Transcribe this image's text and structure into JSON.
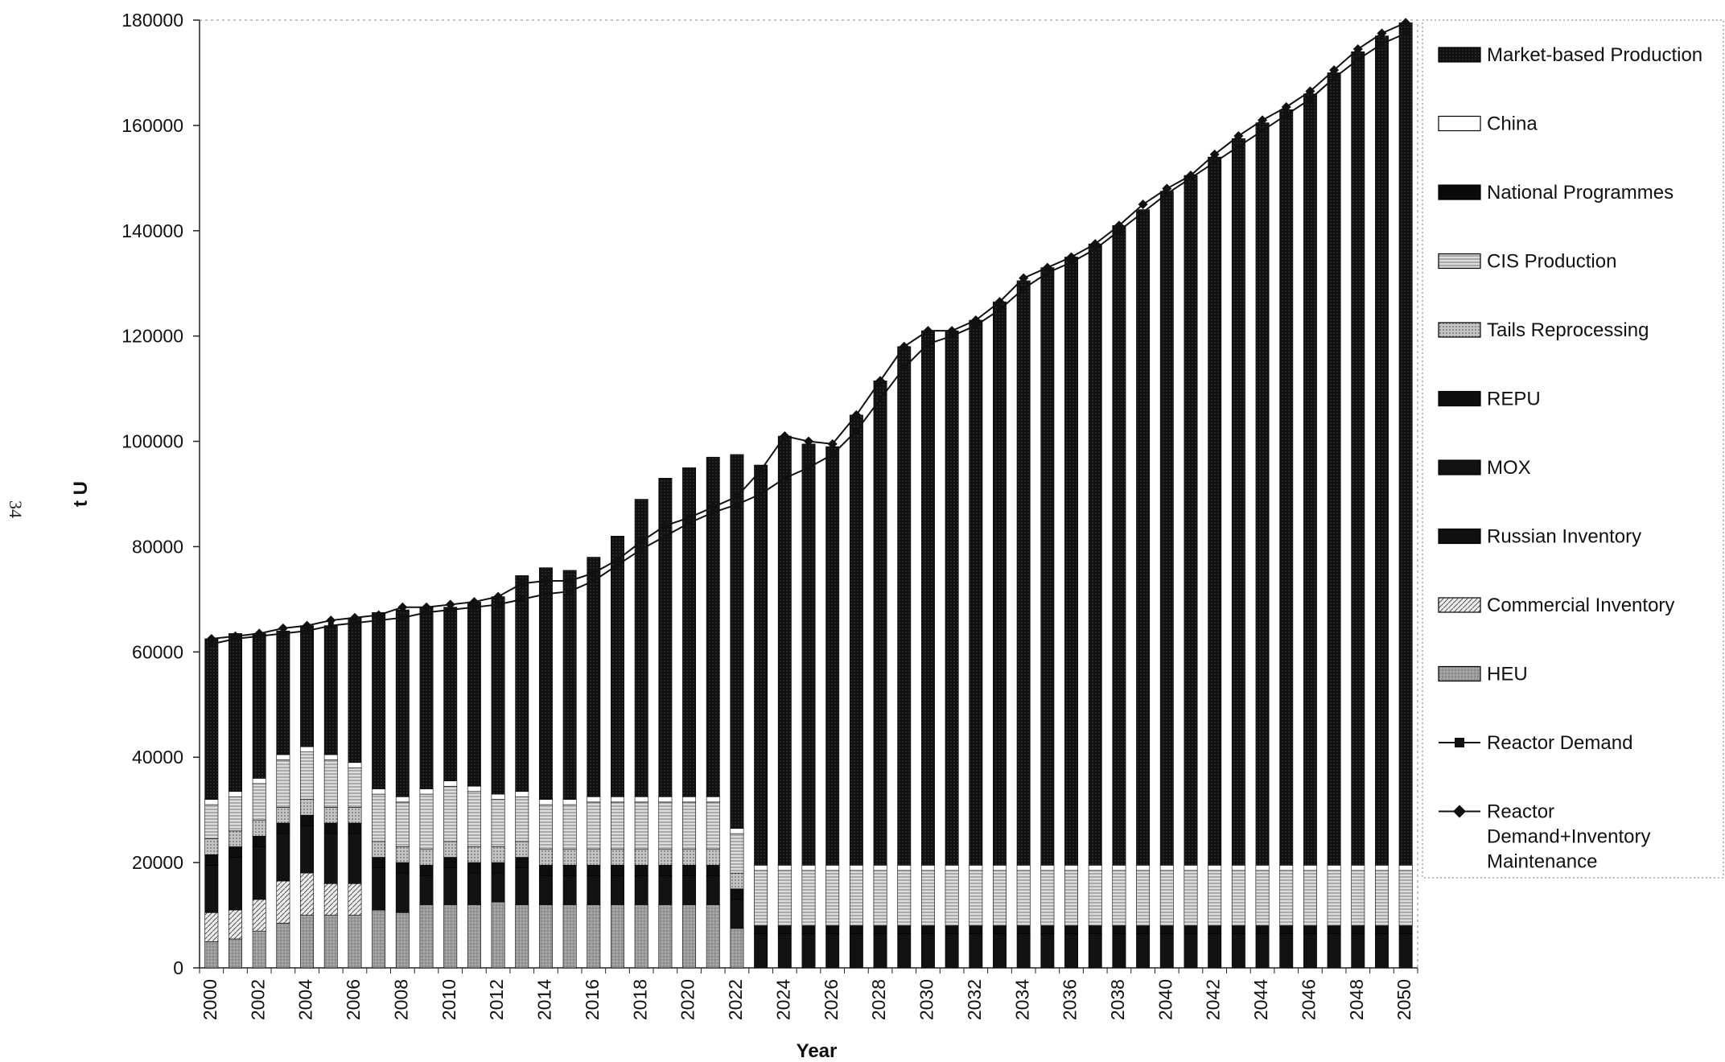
{
  "page_number": "34",
  "colors": {
    "market": "#161616",
    "china": "#ffffff",
    "national": "#0a0a0a",
    "cis": "#d9d9d9",
    "tails": "#bdbdbd",
    "repu": "#0d0d0d",
    "mox": "#121212",
    "russian": "#101010",
    "commercial": "#e8e8e8",
    "heu": "#9a9a9a",
    "line": "#111111"
  },
  "chart_data": {
    "type": "bar",
    "stacked": true,
    "title": "",
    "xlabel": "Year",
    "ylabel": "t U",
    "ylim": [
      0,
      180000
    ],
    "yticks": [
      0,
      20000,
      40000,
      60000,
      80000,
      100000,
      120000,
      140000,
      160000,
      180000
    ],
    "xtick_labels": [
      "2000",
      "2002",
      "2004",
      "2006",
      "2008",
      "2010",
      "2012",
      "2014",
      "2016",
      "2018",
      "2020",
      "2022",
      "2024",
      "2026",
      "2028",
      "2030",
      "2032",
      "2034",
      "2036",
      "2038",
      "2040",
      "2042",
      "2044",
      "2046",
      "2048",
      "2050"
    ],
    "grid": false,
    "legend_position": "right",
    "categories": [
      "2000",
      "2001",
      "2002",
      "2003",
      "2004",
      "2005",
      "2006",
      "2007",
      "2008",
      "2009",
      "2010",
      "2011",
      "2012",
      "2013",
      "2014",
      "2015",
      "2016",
      "2017",
      "2018",
      "2019",
      "2020",
      "2021",
      "2022",
      "2023",
      "2024",
      "2025",
      "2026",
      "2027",
      "2028",
      "2029",
      "2030",
      "2031",
      "2032",
      "2033",
      "2034",
      "2035",
      "2036",
      "2037",
      "2038",
      "2039",
      "2040",
      "2041",
      "2042",
      "2043",
      "2044",
      "2045",
      "2046",
      "2047",
      "2048",
      "2049",
      "2050"
    ],
    "legend": [
      {
        "label": "Market-based Production",
        "key": "market",
        "kind": "bar"
      },
      {
        "label": "China",
        "key": "china",
        "kind": "bar"
      },
      {
        "label": "National Programmes",
        "key": "national",
        "kind": "bar"
      },
      {
        "label": "CIS Production",
        "key": "cis",
        "kind": "bar"
      },
      {
        "label": "Tails Reprocessing",
        "key": "tails",
        "kind": "bar"
      },
      {
        "label": "REPU",
        "key": "repu",
        "kind": "bar"
      },
      {
        "label": "MOX",
        "key": "mox",
        "kind": "bar"
      },
      {
        "label": "Russian Inventory",
        "key": "russian",
        "kind": "bar"
      },
      {
        "label": "Commercial Inventory",
        "key": "commercial",
        "kind": "bar"
      },
      {
        "label": "HEU",
        "key": "heu",
        "kind": "bar"
      },
      {
        "label": "Reactor Demand",
        "key": "demand",
        "kind": "line-square"
      },
      {
        "label": "Reactor Demand+Inventory Maintenance",
        "label_lines": [
          "Reactor",
          "Demand+Inventory",
          "Maintenance"
        ],
        "key": "demand_inv",
        "kind": "line-diamond"
      }
    ],
    "series": [
      {
        "key": "heu",
        "values": [
          5000,
          5500,
          7000,
          8500,
          10000,
          10000,
          10000,
          11000,
          10500,
          12000,
          12000,
          12000,
          12500,
          12000,
          12000,
          12000,
          12000,
          12000,
          12000,
          12000,
          12000,
          12000,
          7500,
          0,
          0,
          0,
          0,
          0,
          0,
          0,
          0,
          0,
          0,
          0,
          0,
          0,
          0,
          0,
          0,
          0,
          0,
          0,
          0,
          0,
          0,
          0,
          0,
          0,
          0,
          0,
          0
        ]
      },
      {
        "key": "commercial",
        "values": [
          5500,
          5500,
          6000,
          8000,
          8000,
          6000,
          6000,
          0,
          0,
          0,
          0,
          0,
          0,
          0,
          0,
          0,
          0,
          0,
          0,
          0,
          0,
          0,
          0,
          0,
          0,
          0,
          0,
          0,
          0,
          0,
          0,
          0,
          0,
          0,
          0,
          0,
          0,
          0,
          0,
          0,
          0,
          0,
          0,
          0,
          0,
          0,
          0,
          0,
          0,
          0,
          0
        ]
      },
      {
        "key": "russian",
        "values": [
          0,
          0,
          0,
          0,
          0,
          0,
          0,
          0,
          0,
          0,
          0,
          0,
          0,
          0,
          0,
          0,
          0,
          0,
          0,
          0,
          0,
          0,
          0,
          0,
          0,
          0,
          0,
          0,
          0,
          0,
          0,
          0,
          0,
          0,
          0,
          0,
          0,
          0,
          0,
          0,
          0,
          0,
          0,
          0,
          0,
          0,
          0,
          0,
          0,
          0,
          0
        ]
      },
      {
        "key": "mox",
        "values": [
          9000,
          10000,
          10000,
          9000,
          9000,
          9500,
          9500,
          8000,
          7500,
          5500,
          7000,
          6000,
          5500,
          7000,
          5500,
          5500,
          5500,
          5500,
          5500,
          5500,
          5500,
          5500,
          5500,
          6500,
          6500,
          6500,
          6500,
          6500,
          6500,
          6500,
          6500,
          6500,
          6500,
          6500,
          6500,
          6500,
          6500,
          6500,
          6500,
          6500,
          6500,
          6500,
          6500,
          6500,
          6500,
          6500,
          6500,
          6500,
          6500,
          6500,
          6500
        ]
      },
      {
        "key": "repu",
        "values": [
          2000,
          2000,
          2000,
          2000,
          2000,
          2000,
          2000,
          2000,
          2000,
          2000,
          2000,
          2000,
          2000,
          2000,
          2000,
          2000,
          2000,
          2000,
          2000,
          2000,
          2000,
          2000,
          2000,
          1500,
          1500,
          1500,
          1500,
          1500,
          1500,
          1500,
          1500,
          1500,
          1500,
          1500,
          1500,
          1500,
          1500,
          1500,
          1500,
          1500,
          1500,
          1500,
          1500,
          1500,
          1500,
          1500,
          1500,
          1500,
          1500,
          1500,
          1500
        ]
      },
      {
        "key": "tails",
        "values": [
          3000,
          3000,
          3000,
          3000,
          3000,
          3000,
          3000,
          3000,
          3000,
          3000,
          3000,
          3000,
          3000,
          3000,
          3000,
          3000,
          3000,
          3000,
          3000,
          3000,
          3000,
          3000,
          3000,
          0,
          0,
          0,
          0,
          0,
          0,
          0,
          0,
          0,
          0,
          0,
          0,
          0,
          0,
          0,
          0,
          0,
          0,
          0,
          0,
          0,
          0,
          0,
          0,
          0,
          0,
          0,
          0
        ]
      },
      {
        "key": "cis",
        "values": [
          6500,
          6500,
          7000,
          9000,
          9000,
          9000,
          7500,
          9000,
          8500,
          10500,
          10500,
          10500,
          9000,
          8500,
          8500,
          8500,
          9000,
          9000,
          9000,
          9000,
          9000,
          9000,
          7500,
          10500,
          10500,
          10500,
          10500,
          10500,
          10500,
          10500,
          10500,
          10500,
          10500,
          10500,
          10500,
          10500,
          10500,
          10500,
          10500,
          10500,
          10500,
          10500,
          10500,
          10500,
          10500,
          10500,
          10500,
          10500,
          10500,
          10500,
          10500
        ]
      },
      {
        "key": "national",
        "values": [
          0,
          0,
          0,
          0,
          0,
          0,
          0,
          0,
          0,
          0,
          0,
          0,
          0,
          0,
          0,
          0,
          0,
          0,
          0,
          0,
          0,
          0,
          0,
          0,
          0,
          0,
          0,
          0,
          0,
          0,
          0,
          0,
          0,
          0,
          0,
          0,
          0,
          0,
          0,
          0,
          0,
          0,
          0,
          0,
          0,
          0,
          0,
          0,
          0,
          0,
          0
        ]
      },
      {
        "key": "china",
        "values": [
          1000,
          1000,
          1000,
          1000,
          1000,
          1000,
          1000,
          1000,
          1000,
          1000,
          1000,
          1000,
          1000,
          1000,
          1000,
          1000,
          1000,
          1000,
          1000,
          1000,
          1000,
          1000,
          1000,
          1000,
          1000,
          1000,
          1000,
          1000,
          1000,
          1000,
          1000,
          1000,
          1000,
          1000,
          1000,
          1000,
          1000,
          1000,
          1000,
          1000,
          1000,
          1000,
          1000,
          1000,
          1000,
          1000,
          1000,
          1000,
          1000,
          1000,
          1000
        ]
      },
      {
        "key": "market",
        "values": [
          30500,
          30000,
          27500,
          23500,
          23000,
          24500,
          27500,
          33500,
          35500,
          34500,
          33000,
          35000,
          37500,
          41000,
          44000,
          43500,
          45500,
          49500,
          56500,
          60500,
          62500,
          64500,
          71000,
          76000,
          81500,
          80000,
          79500,
          85500,
          92000,
          98500,
          101500,
          101500,
          103500,
          107000,
          111000,
          113500,
          115500,
          118000,
          121500,
          124500,
          128000,
          131000,
          134500,
          138000,
          141000,
          143500,
          146500,
          150500,
          154500,
          157500,
          160000
        ]
      }
    ],
    "lines": [
      {
        "key": "demand",
        "values": [
          61500,
          62500,
          63000,
          63500,
          64000,
          65000,
          65500,
          66000,
          66500,
          67500,
          68000,
          68500,
          69000,
          70000,
          71000,
          71500,
          73500,
          76500,
          79500,
          82000,
          84500,
          86500,
          88000,
          90000,
          93000,
          95000,
          97500,
          102000,
          108000,
          114000,
          118500,
          120000,
          122000,
          125000,
          129000,
          132000,
          134000,
          136500,
          140000,
          143500,
          147000,
          150000,
          153000,
          156000,
          159000,
          162000,
          165000,
          169000,
          172500,
          175500,
          177500
        ]
      },
      {
        "key": "demand_inv",
        "values": [
          62500,
          63000,
          63500,
          64500,
          65000,
          66000,
          66500,
          67000,
          68500,
          68500,
          69000,
          69500,
          70500,
          73000,
          73500,
          73500,
          75000,
          77500,
          81000,
          84000,
          85500,
          87500,
          89500,
          94500,
          101000,
          100000,
          99500,
          105000,
          111500,
          118000,
          121000,
          121000,
          123000,
          126500,
          131000,
          133000,
          135000,
          137500,
          141000,
          145000,
          148000,
          150500,
          154500,
          158000,
          161000,
          163500,
          166500,
          170500,
          174500,
          177500,
          179500
        ]
      }
    ]
  }
}
